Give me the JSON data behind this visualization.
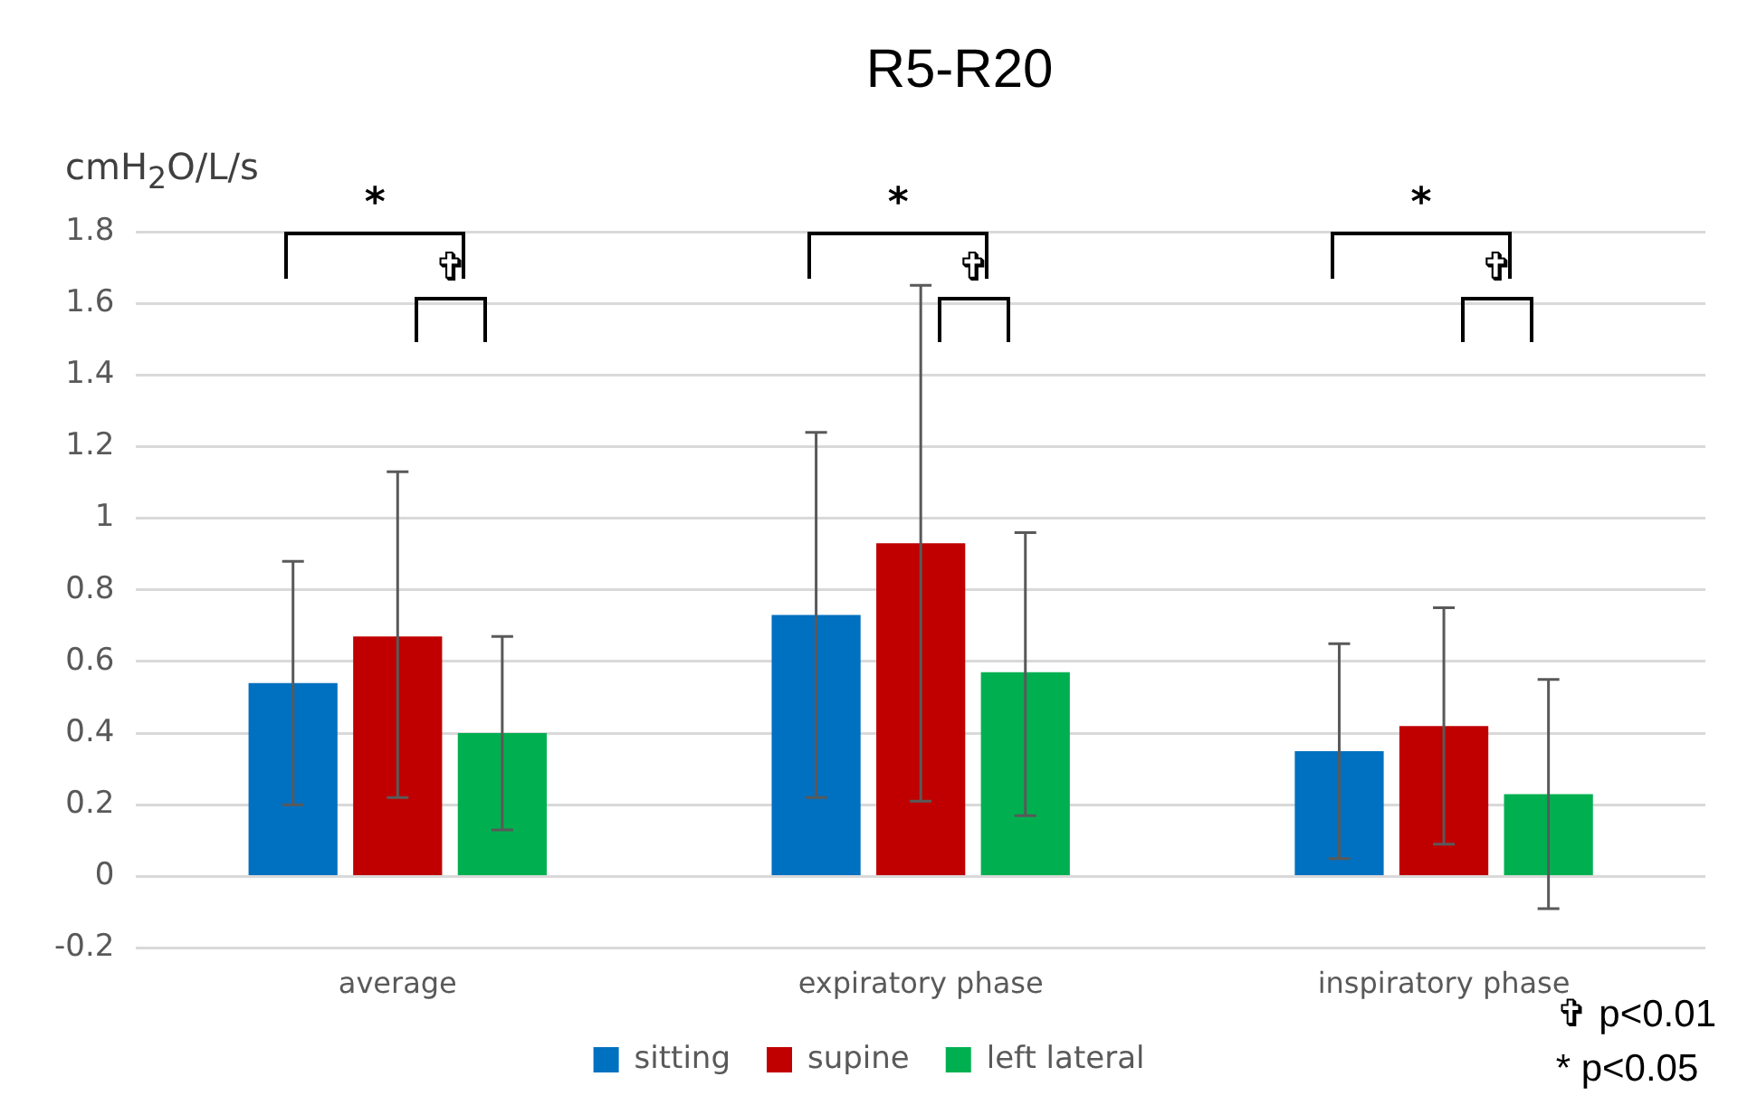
{
  "chart_data": {
    "type": "bar",
    "title": "R5-R20",
    "ylabel": "cmH$_{2}$O/L/s",
    "categories": [
      "average",
      "expiratory phase",
      "inspiratory phase"
    ],
    "series": [
      {
        "name": "sitting",
        "color": "#0070c0",
        "values": [
          0.54,
          0.73,
          0.35
        ],
        "errors": [
          [
            0.2,
            0.88
          ],
          [
            0.22,
            1.24
          ],
          [
            0.05,
            0.65
          ]
        ]
      },
      {
        "name": "supine",
        "color": "#c00000",
        "values": [
          0.67,
          0.93,
          0.42
        ],
        "errors": [
          [
            0.22,
            1.13
          ],
          [
            0.21,
            1.65
          ],
          [
            0.09,
            0.75
          ]
        ]
      },
      {
        "name": "left lateral",
        "color": "#00b050",
        "values": [
          0.4,
          0.57,
          0.23
        ],
        "errors": [
          [
            0.13,
            0.67
          ],
          [
            0.17,
            0.96
          ],
          [
            -0.09,
            0.55
          ]
        ]
      }
    ],
    "ylim": [
      -0.2,
      1.8
    ],
    "yticks": [
      -0.2,
      0,
      0.2,
      0.4,
      0.6,
      0.8,
      1,
      1.2,
      1.4,
      1.6,
      1.8
    ],
    "grid": "y",
    "legend": "bottom",
    "annotations": [
      "*",
      "✞",
      "*",
      "✞",
      "*",
      "✞",
      "✞ p<0.01",
      "* p<0.05"
    ]
  }
}
